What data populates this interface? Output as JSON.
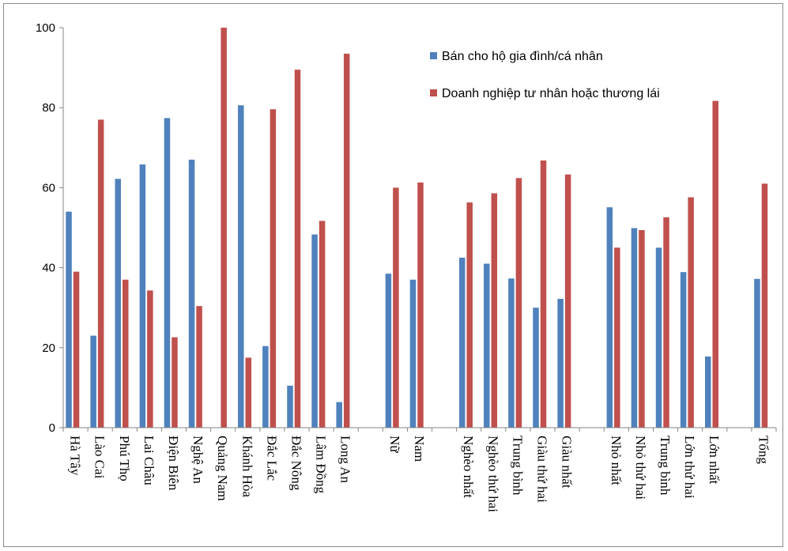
{
  "chart_data": {
    "type": "bar",
    "categories": [
      "Hà Tây",
      "Lào Cai",
      "Phú Thọ",
      "Lai Châu",
      "Điện Biên",
      "Nghệ An",
      "Quảng Nam",
      "Khánh Hòa",
      "Đắc Lắc",
      "Đắc Nông",
      "Lâm Đồng",
      "Long An",
      "",
      "Nữ",
      "Nam",
      "",
      "Nghèo nhất",
      "Nghèo thứ hai",
      "Trung bình",
      "Giàu thứ hai",
      "Giàu nhất",
      "",
      "Nhỏ nhất",
      "Nhỏ thứ hai",
      "Trung bình",
      "Lớn thứ hai",
      "Lớn nhất",
      "",
      "Tổng"
    ],
    "series": [
      {
        "name": "Bán cho hộ gia đình/cá nhân",
        "color": "#4f81bd",
        "values": [
          54,
          23,
          62.2,
          65.8,
          77.4,
          67,
          0,
          80.6,
          20.4,
          10.5,
          48.3,
          6.4,
          null,
          38.5,
          37,
          null,
          42.5,
          41,
          37.3,
          30,
          32.2,
          null,
          55.1,
          49.9,
          45,
          38.9,
          17.8,
          null,
          37.2
        ]
      },
      {
        "name": "Doanh nghiệp tư nhân hoặc thương lái",
        "color": "#c0504d",
        "values": [
          39,
          77,
          37,
          34.3,
          22.6,
          30.4,
          100,
          17.5,
          79.6,
          89.5,
          51.7,
          93.5,
          null,
          60,
          61.3,
          null,
          56.3,
          58.6,
          62.4,
          66.8,
          63.3,
          null,
          45,
          49.4,
          52.6,
          57.6,
          81.7,
          null,
          61
        ]
      }
    ],
    "ylim": [
      0,
      100
    ],
    "yticks": [
      0,
      20,
      40,
      60,
      80,
      100
    ],
    "legend_position": "top-right",
    "grid": false
  }
}
